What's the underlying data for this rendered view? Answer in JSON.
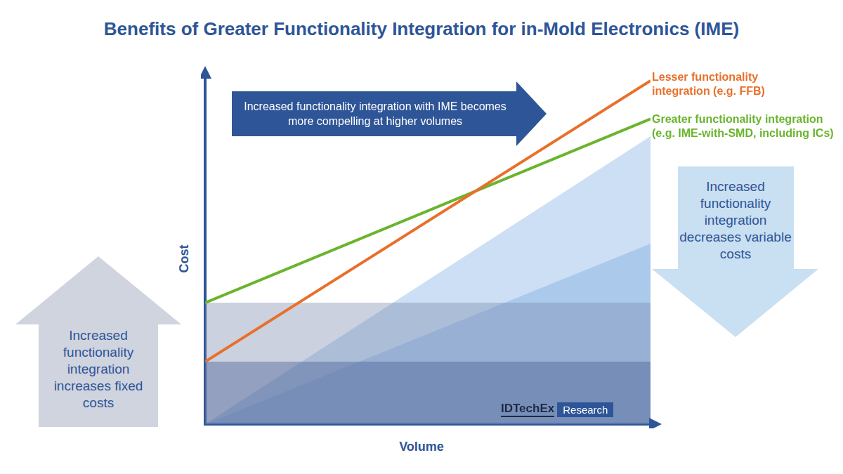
{
  "chart_data": {
    "type": "line",
    "title": "Benefits of Greater Functionality Integration for in-Mold Electronics (IME)",
    "x_label": "Volume",
    "y_label": "Cost",
    "x": [
      0,
      100
    ],
    "xlim": [
      0,
      100
    ],
    "ylim": [
      0,
      100
    ],
    "tick_labels": false,
    "grid": false,
    "series": [
      {
        "name": "Lesser functionality integration (e.g. FFB)",
        "color": "#e8702a",
        "values": [
          18,
          99
        ]
      },
      {
        "name": "Greater functionality integration (e.g. IME-with-SMD, including ICs)",
        "color": "#6ab42d",
        "values": [
          35,
          88
        ]
      }
    ],
    "areas": [
      {
        "values": [
          35,
          35
        ],
        "color": "rgba(120,135,170,0.38)"
      },
      {
        "values": [
          18,
          18
        ],
        "color": "rgba(50,80,140,0.45)"
      },
      {
        "values": [
          0,
          83
        ],
        "color": "rgba(120,170,225,0.38)"
      },
      {
        "values": [
          0,
          52
        ],
        "color": "rgba(80,140,205,0.30)"
      }
    ],
    "annotations": [
      "Increased functionality integration with IME becomes more compelling at higher volumes",
      "Increased functionality integration increases fixed costs",
      "Increased functionality integration decreases variable costs"
    ],
    "source": {
      "name": "IDTechEx",
      "label": "Research"
    }
  }
}
